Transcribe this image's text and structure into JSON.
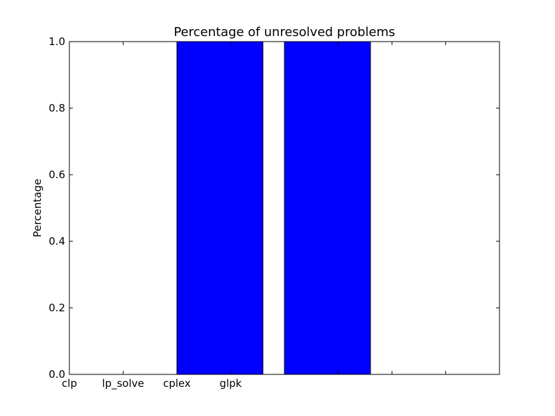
{
  "chart_data": {
    "type": "bar",
    "title": "Percentage of unresolved problems",
    "xlabel": "",
    "ylabel": "Percentage",
    "x_tick_labels": [
      "clp",
      "lp_solve",
      "cplex",
      "glpk"
    ],
    "x_positions": [
      0,
      0.5,
      1,
      1.5,
      2,
      2.5,
      3,
      3.5,
      4
    ],
    "xlim": [
      0,
      4
    ],
    "ylim": [
      0,
      1.0
    ],
    "y_ticks": [
      0.0,
      0.2,
      0.4,
      0.6,
      0.8,
      1.0
    ],
    "y_tick_labels": [
      "0.0",
      "0.2",
      "0.4",
      "0.6",
      "0.8",
      "1.0"
    ],
    "bars": [
      {
        "x": 0.0,
        "width": 0.8,
        "value": 0
      },
      {
        "x": 1.0,
        "width": 0.8,
        "value": 1.0
      },
      {
        "x": 2.0,
        "width": 0.8,
        "value": 1.0
      },
      {
        "x": 3.0,
        "width": 0.8,
        "value": 0
      }
    ],
    "bar_color": "#0000ff",
    "edge_color": "#000000",
    "grid": false
  }
}
